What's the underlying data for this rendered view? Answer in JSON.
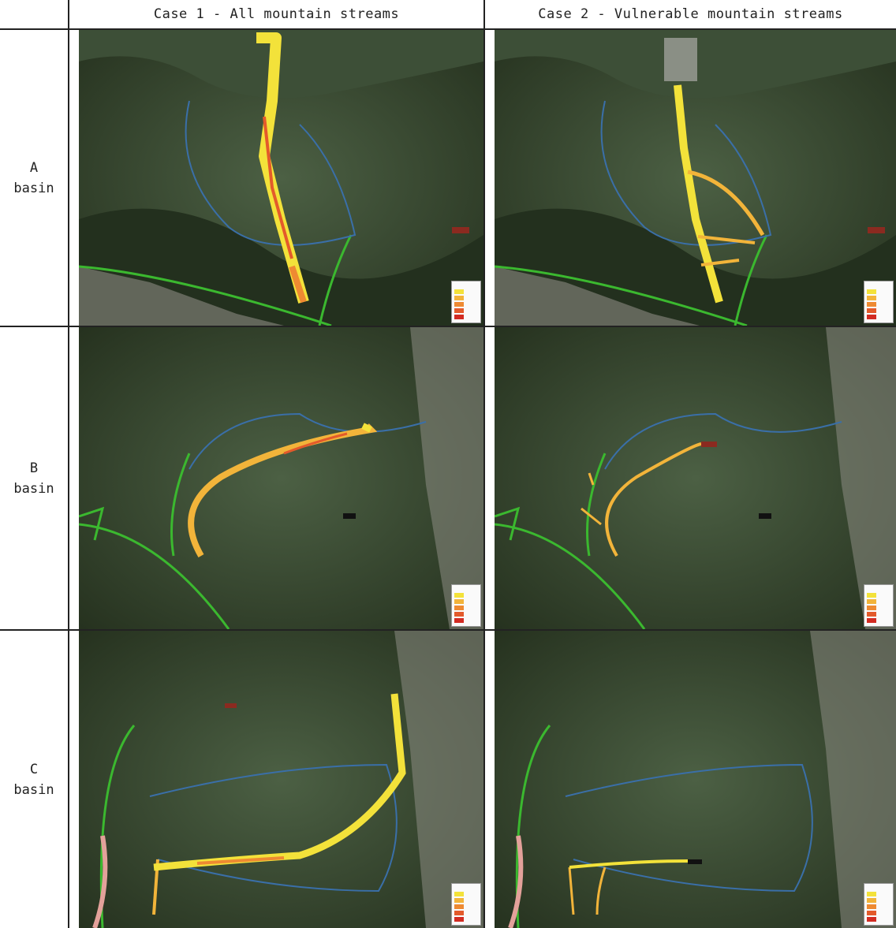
{
  "columns": [
    "Case 1 - All mountain streams",
    "Case 2 - Vulnerable mountain streams"
  ],
  "rows": [
    {
      "letter": "A",
      "word": "basin"
    },
    {
      "letter": "B",
      "word": "basin"
    },
    {
      "letter": "C",
      "word": "basin"
    }
  ],
  "legend_colors": [
    "#f3e23a",
    "#f2b43a",
    "#ee8a32",
    "#e35a2b",
    "#d22b22"
  ],
  "colors": {
    "grid": "#222222",
    "terrain_dark": "#2b3a29",
    "terrain_mid": "#4a5e42",
    "village": "#a8a8a0",
    "stream": "#3bb82f",
    "boundary": "#3a6fa8",
    "flood_yellow": "#f3e23a",
    "flood_orange": "#ee8a32"
  }
}
